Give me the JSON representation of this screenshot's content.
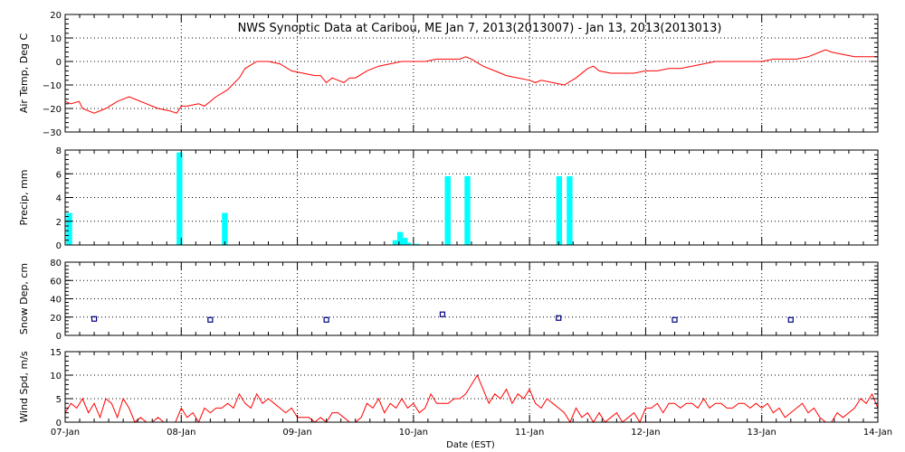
{
  "chart_data": {
    "type": "multi-panel",
    "title": "NWS Synoptic Data at Caribou, ME   Jan  7, 2013(2013007) - Jan 13, 2013(2013013)",
    "xlabel": "Date (EST)",
    "x_ticks": [
      "07-Jan",
      "08-Jan",
      "09-Jan",
      "10-Jan",
      "11-Jan",
      "12-Jan",
      "13-Jan",
      "14-Jan"
    ],
    "x_range_days": [
      0,
      7
    ],
    "colors": {
      "temp": "#ff0000",
      "precip": "#00ffff",
      "snow": "#000080",
      "wind": "#ff0000",
      "frame": "#000000"
    },
    "panels": [
      {
        "type": "line",
        "ylabel": "Air Temp, Deg C",
        "ylim": [
          -30,
          20
        ],
        "yticks": [
          "20",
          "10",
          "0",
          "−10",
          "−20",
          "−30"
        ],
        "series": [
          {
            "x": [
              0,
              0.05,
              0.12,
              0.15,
              0.25,
              0.35,
              0.45,
              0.55,
              0.6,
              0.7,
              0.8,
              0.9,
              0.96,
              1.0,
              1.05,
              1.15,
              1.2,
              1.3,
              1.4,
              1.5,
              1.55,
              1.65,
              1.75,
              1.85,
              1.95,
              2.05,
              2.15,
              2.2,
              2.25,
              2.3,
              2.35,
              2.4,
              2.45,
              2.5,
              2.6,
              2.7,
              2.8,
              2.9,
              3.0,
              3.1,
              3.2,
              3.3,
              3.4,
              3.45,
              3.5,
              3.6,
              3.7,
              3.8,
              3.9,
              4.0,
              4.05,
              4.1,
              4.2,
              4.3,
              4.4,
              4.5,
              4.55,
              4.6,
              4.7,
              4.8,
              4.9,
              5.0,
              5.1,
              5.2,
              5.3,
              5.4,
              5.5,
              5.6,
              5.7,
              5.8,
              5.9,
              6.0,
              6.1,
              6.2,
              6.3,
              6.4,
              6.5,
              6.55,
              6.6,
              6.7,
              6.8,
              6.9,
              7.0
            ],
            "y": [
              -17,
              -18,
              -17,
              -20,
              -22,
              -20,
              -17,
              -15,
              -16,
              -18,
              -20,
              -21,
              -22,
              -19,
              -19,
              -18,
              -19,
              -15,
              -12,
              -7,
              -3,
              0,
              0,
              -1,
              -4,
              -5,
              -6,
              -6,
              -9,
              -7,
              -8,
              -9,
              -7,
              -7,
              -4,
              -2,
              -1,
              0,
              0,
              0,
              1,
              1,
              1,
              2,
              1,
              -2,
              -4,
              -6,
              -7,
              -8,
              -9,
              -8,
              -9,
              -10,
              -7,
              -3,
              -2,
              -4,
              -5,
              -5,
              -5,
              -4,
              -4,
              -3,
              -3,
              -2,
              -1,
              0,
              0,
              0,
              0,
              0,
              1,
              1,
              1,
              2,
              4,
              5,
              4,
              3,
              2,
              2,
              2
            ]
          }
        ]
      },
      {
        "type": "bar",
        "ylabel": "Precip, mm",
        "ylim": [
          0,
          8
        ],
        "yticks": [
          "8",
          "6",
          "4",
          "2",
          "0"
        ],
        "bar_width_days": 0.05,
        "x": [
          0.01,
          0.96,
          1.35,
          2.82,
          2.86,
          2.9,
          2.93,
          3.0,
          3.27,
          3.44,
          4.23,
          4.32
        ],
        "values": [
          2.7,
          7.8,
          2.7,
          0.4,
          1.1,
          0.6,
          0.2,
          0.1,
          5.8,
          5.8,
          5.8,
          5.8
        ]
      },
      {
        "type": "scatter",
        "ylabel": "Snow Dep, cm",
        "ylim": [
          0,
          80
        ],
        "yticks": [
          "80",
          "60",
          "40",
          "20",
          "0"
        ],
        "x": [
          0.25,
          1.25,
          2.25,
          3.25,
          4.25,
          5.25,
          6.25
        ],
        "y": [
          18,
          17,
          17,
          23,
          19,
          17,
          17
        ]
      },
      {
        "type": "line",
        "ylabel": "Wind Spd, m/s",
        "ylim": [
          0,
          15
        ],
        "yticks": [
          "15",
          "10",
          "5",
          "0"
        ],
        "series": [
          {
            "x": [
              0,
              0.05,
              0.1,
              0.15,
              0.2,
              0.25,
              0.3,
              0.35,
              0.4,
              0.45,
              0.5,
              0.55,
              0.6,
              0.65,
              0.7,
              0.75,
              0.8,
              0.85,
              0.9,
              0.95,
              1.0,
              1.05,
              1.1,
              1.15,
              1.2,
              1.25,
              1.3,
              1.35,
              1.4,
              1.45,
              1.5,
              1.55,
              1.6,
              1.65,
              1.7,
              1.75,
              1.8,
              1.85,
              1.9,
              1.95,
              2.0,
              2.05,
              2.1,
              2.15,
              2.2,
              2.25,
              2.3,
              2.35,
              2.4,
              2.45,
              2.5,
              2.55,
              2.6,
              2.65,
              2.7,
              2.75,
              2.8,
              2.85,
              2.9,
              2.95,
              3.0,
              3.05,
              3.1,
              3.15,
              3.2,
              3.25,
              3.3,
              3.35,
              3.4,
              3.45,
              3.5,
              3.55,
              3.6,
              3.65,
              3.7,
              3.75,
              3.8,
              3.85,
              3.9,
              3.95,
              4.0,
              4.05,
              4.1,
              4.15,
              4.2,
              4.25,
              4.3,
              4.35,
              4.4,
              4.45,
              4.5,
              4.55,
              4.6,
              4.65,
              4.7,
              4.75,
              4.8,
              4.85,
              4.9,
              4.95,
              5.0,
              5.05,
              5.1,
              5.15,
              5.2,
              5.25,
              5.3,
              5.35,
              5.4,
              5.45,
              5.5,
              5.55,
              5.6,
              5.65,
              5.7,
              5.75,
              5.8,
              5.85,
              5.9,
              5.95,
              6.0,
              6.05,
              6.1,
              6.15,
              6.2,
              6.25,
              6.3,
              6.35,
              6.4,
              6.45,
              6.5,
              6.55,
              6.6,
              6.65,
              6.7,
              6.75,
              6.8,
              6.85,
              6.9,
              6.95,
              7.0
            ],
            "y": [
              2,
              4,
              3,
              5,
              2,
              4,
              1,
              5,
              4,
              1,
              5,
              3,
              0,
              1,
              0,
              0,
              1,
              0,
              0,
              0,
              3,
              1,
              2,
              0,
              3,
              2,
              3,
              3,
              4,
              3,
              6,
              4,
              3,
              6,
              4,
              5,
              4,
              3,
              2,
              3,
              1,
              1,
              1,
              0,
              1,
              0,
              2,
              2,
              1,
              0,
              0,
              1,
              4,
              3,
              5,
              2,
              4,
              3,
              5,
              3,
              4,
              2,
              3,
              6,
              4,
              4,
              4,
              5,
              5,
              6,
              8,
              10,
              7,
              4,
              6,
              5,
              7,
              4,
              6,
              5,
              7,
              4,
              3,
              5,
              4,
              3,
              2,
              0,
              3,
              1,
              2,
              0,
              2,
              0,
              1,
              2,
              0,
              1,
              2,
              0,
              3,
              3,
              4,
              2,
              4,
              4,
              3,
              4,
              4,
              3,
              5,
              3,
              4,
              4,
              3,
              3,
              4,
              4,
              3,
              4,
              3,
              4,
              2,
              3,
              1,
              2,
              3,
              4,
              2,
              3,
              1,
              0,
              0,
              2,
              1,
              2,
              3,
              5,
              4,
              6,
              3
            ]
          }
        ]
      }
    ]
  }
}
